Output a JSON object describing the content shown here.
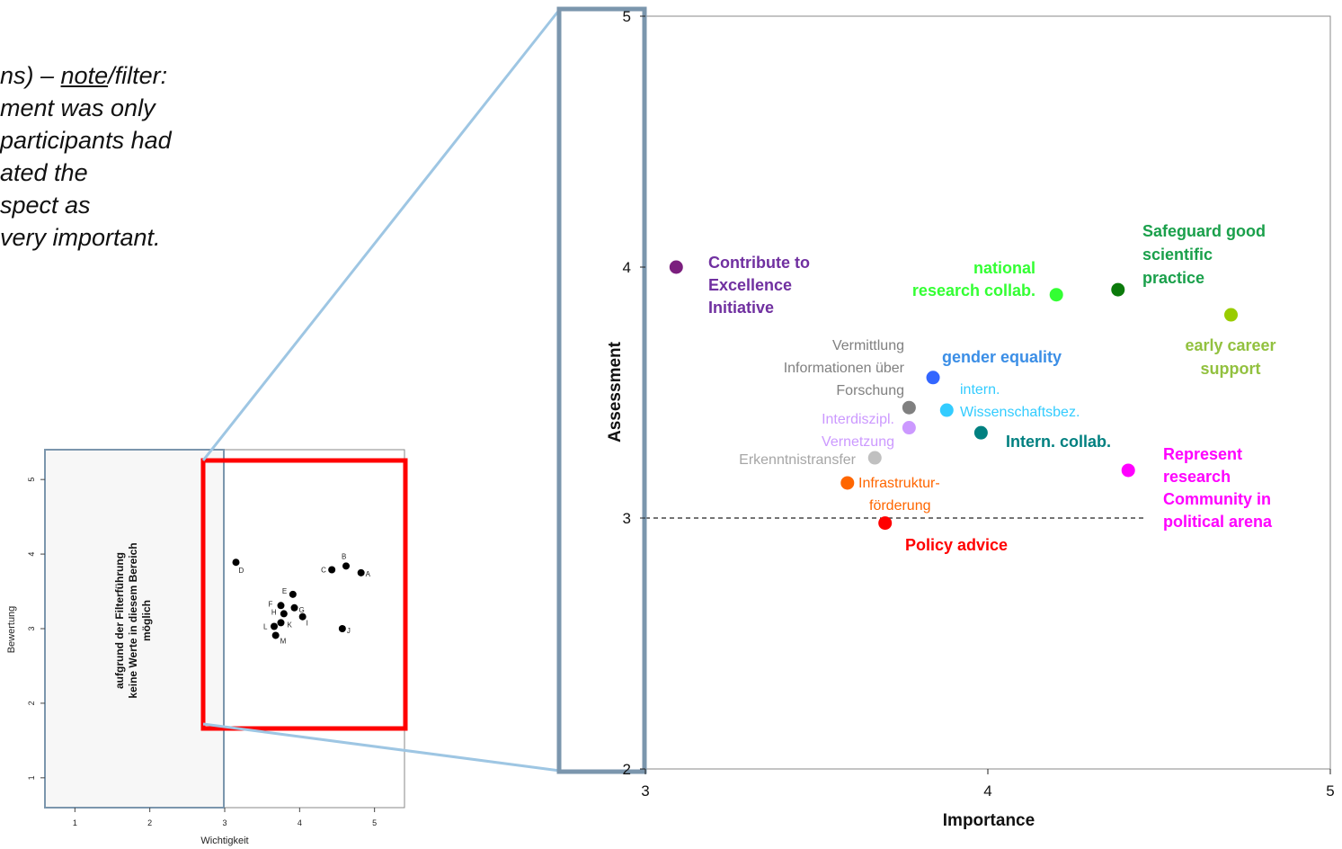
{
  "note": {
    "l1a": "ns) – ",
    "l1u": "note",
    "l1b": "/filter:",
    "l2": "ment was only",
    "l3": " participants had",
    "l4": "ated the",
    "l5": "spect as",
    "l6": " very important."
  },
  "colors": {
    "zoom_frame": "#7b96ad",
    "connector": "#9ec6e3",
    "highlight": "#ff0000"
  },
  "chart_data": [
    {
      "type": "scatter",
      "title": "",
      "xlabel": "Importance",
      "ylabel": "Assessment",
      "xlim": [
        3,
        5
      ],
      "ylim": [
        2,
        5
      ],
      "xticks": [
        "3",
        "4",
        "5"
      ],
      "yticks": [
        "2",
        "3",
        "4",
        "5"
      ],
      "reference_line_y": 3,
      "points": [
        {
          "id": "excellence",
          "x": 3.09,
          "y": 4.0,
          "color": "#7b1f7e",
          "label_lines": [
            "Contribute to",
            "Excellence",
            "Initiative"
          ],
          "style": "bold",
          "label_color": "#7030a0"
        },
        {
          "id": "national",
          "x": 4.2,
          "y": 3.89,
          "color": "#33ff33",
          "label_lines": [
            "national",
            "research collab."
          ],
          "style": "bold",
          "label_color": "#33ff33"
        },
        {
          "id": "safeguard",
          "x": 4.38,
          "y": 3.91,
          "color": "#0b7a0b",
          "label_lines": [
            "Safeguard good",
            "scientific",
            "practice"
          ],
          "style": "bold",
          "label_color": "#1aa04b"
        },
        {
          "id": "early",
          "x": 4.71,
          "y": 3.81,
          "color": "#99cc00",
          "label_lines": [
            "early career",
            "support"
          ],
          "style": "bold",
          "label_color": "#92c13f"
        },
        {
          "id": "gender",
          "x": 3.84,
          "y": 3.56,
          "color": "#3366ff",
          "label_lines": [
            "gender equality"
          ],
          "style": "bold",
          "label_color": "#3b8ee6"
        },
        {
          "id": "vermittlung",
          "x": 3.77,
          "y": 3.44,
          "color": "#808080",
          "label_lines": [
            "Vermittlung",
            "Informationen über",
            "Forschung"
          ],
          "style": "plain",
          "label_color": "#808080"
        },
        {
          "id": "wissenschaft",
          "x": 3.88,
          "y": 3.43,
          "color": "#33ccff",
          "label_lines": [
            "intern.",
            "Wissenschaftsbez."
          ],
          "style": "plain",
          "label_color": "#33ccff"
        },
        {
          "id": "interdiszipl",
          "x": 3.77,
          "y": 3.36,
          "color": "#cc99ff",
          "label_lines": [
            "Interdiszipl.",
            "Vernetzung"
          ],
          "style": "plain",
          "label_color": "#cc99ff"
        },
        {
          "id": "interncollab",
          "x": 3.98,
          "y": 3.34,
          "color": "#008080",
          "label_lines": [
            "Intern. collab."
          ],
          "style": "bold",
          "label_color": "#008080"
        },
        {
          "id": "erkenntnis",
          "x": 3.67,
          "y": 3.24,
          "color": "#c0c0c0",
          "label_lines": [
            "Erkenntnistransfer"
          ],
          "style": "plain",
          "label_color": "#a6a6a6"
        },
        {
          "id": "represent",
          "x": 4.41,
          "y": 3.19,
          "color": "#ff00ff",
          "label_lines": [
            "Represent",
            "research",
            "Community in",
            "political arena"
          ],
          "style": "bold",
          "label_color": "#ff00ff"
        },
        {
          "id": "infra",
          "x": 3.59,
          "y": 3.14,
          "color": "#ff6600",
          "label_lines": [
            "Infrastruktur-",
            "förderung"
          ],
          "style": "plain",
          "label_color": "#ff6600"
        },
        {
          "id": "policy",
          "x": 3.7,
          "y": 2.98,
          "color": "#ff0000",
          "label_lines": [
            "Policy advice"
          ],
          "style": "bold",
          "label_color": "#ff0000"
        }
      ]
    },
    {
      "type": "scatter",
      "title": "",
      "xlabel": "Wichtigkeit",
      "ylabel": "Bewertung",
      "xlim": [
        0.6,
        5.4
      ],
      "ylim": [
        0.6,
        5.4
      ],
      "xticks": [
        "1",
        "2",
        "3",
        "4",
        "5"
      ],
      "yticks": [
        "1",
        "2",
        "3",
        "4",
        "5"
      ],
      "region_text": [
        "aufgrund der Filterführung",
        "keine Werte in diesem Bereich",
        "möglich"
      ],
      "points": [
        {
          "label": "A",
          "x": 4.82,
          "y": 3.75
        },
        {
          "label": "B",
          "x": 4.62,
          "y": 3.84
        },
        {
          "label": "C",
          "x": 4.43,
          "y": 3.79
        },
        {
          "label": "D",
          "x": 3.15,
          "y": 3.89
        },
        {
          "label": "E",
          "x": 3.91,
          "y": 3.46
        },
        {
          "label": "F",
          "x": 3.75,
          "y": 3.31
        },
        {
          "label": "G",
          "x": 3.93,
          "y": 3.28
        },
        {
          "label": "H",
          "x": 3.79,
          "y": 3.2
        },
        {
          "label": "I",
          "x": 4.04,
          "y": 3.16
        },
        {
          "label": "J",
          "x": 4.57,
          "y": 3.0
        },
        {
          "label": "K",
          "x": 3.75,
          "y": 3.08
        },
        {
          "label": "L",
          "x": 3.66,
          "y": 3.03
        },
        {
          "label": "M",
          "x": 3.68,
          "y": 2.91
        }
      ]
    }
  ]
}
